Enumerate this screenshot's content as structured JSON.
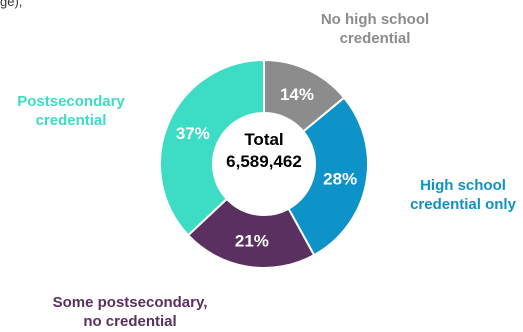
{
  "fragment_text": "ge), ",
  "chart_data": {
    "type": "pie",
    "donut": true,
    "center": {
      "title": "Total",
      "value": "6,589,462"
    },
    "slices": [
      {
        "label_lines": [
          "No high school",
          "credential"
        ],
        "value": 14,
        "value_label": "14%",
        "color": "#8c8c8c",
        "label_color": "#8c8c8c"
      },
      {
        "label_lines": [
          "High school",
          "credential only"
        ],
        "value": 28,
        "value_label": "28%",
        "color": "#0d93c8",
        "label_color": "#0d93c8"
      },
      {
        "label_lines": [
          "Some postsecondary,",
          "no credential"
        ],
        "value": 21,
        "value_label": "21%",
        "color": "#5a3060",
        "label_color": "#5a3060"
      },
      {
        "label_lines": [
          "Postsecondary",
          "credential"
        ],
        "value": 37,
        "value_label": "37%",
        "color": "#3ddcc4",
        "label_color": "#3ddcc4"
      }
    ]
  }
}
